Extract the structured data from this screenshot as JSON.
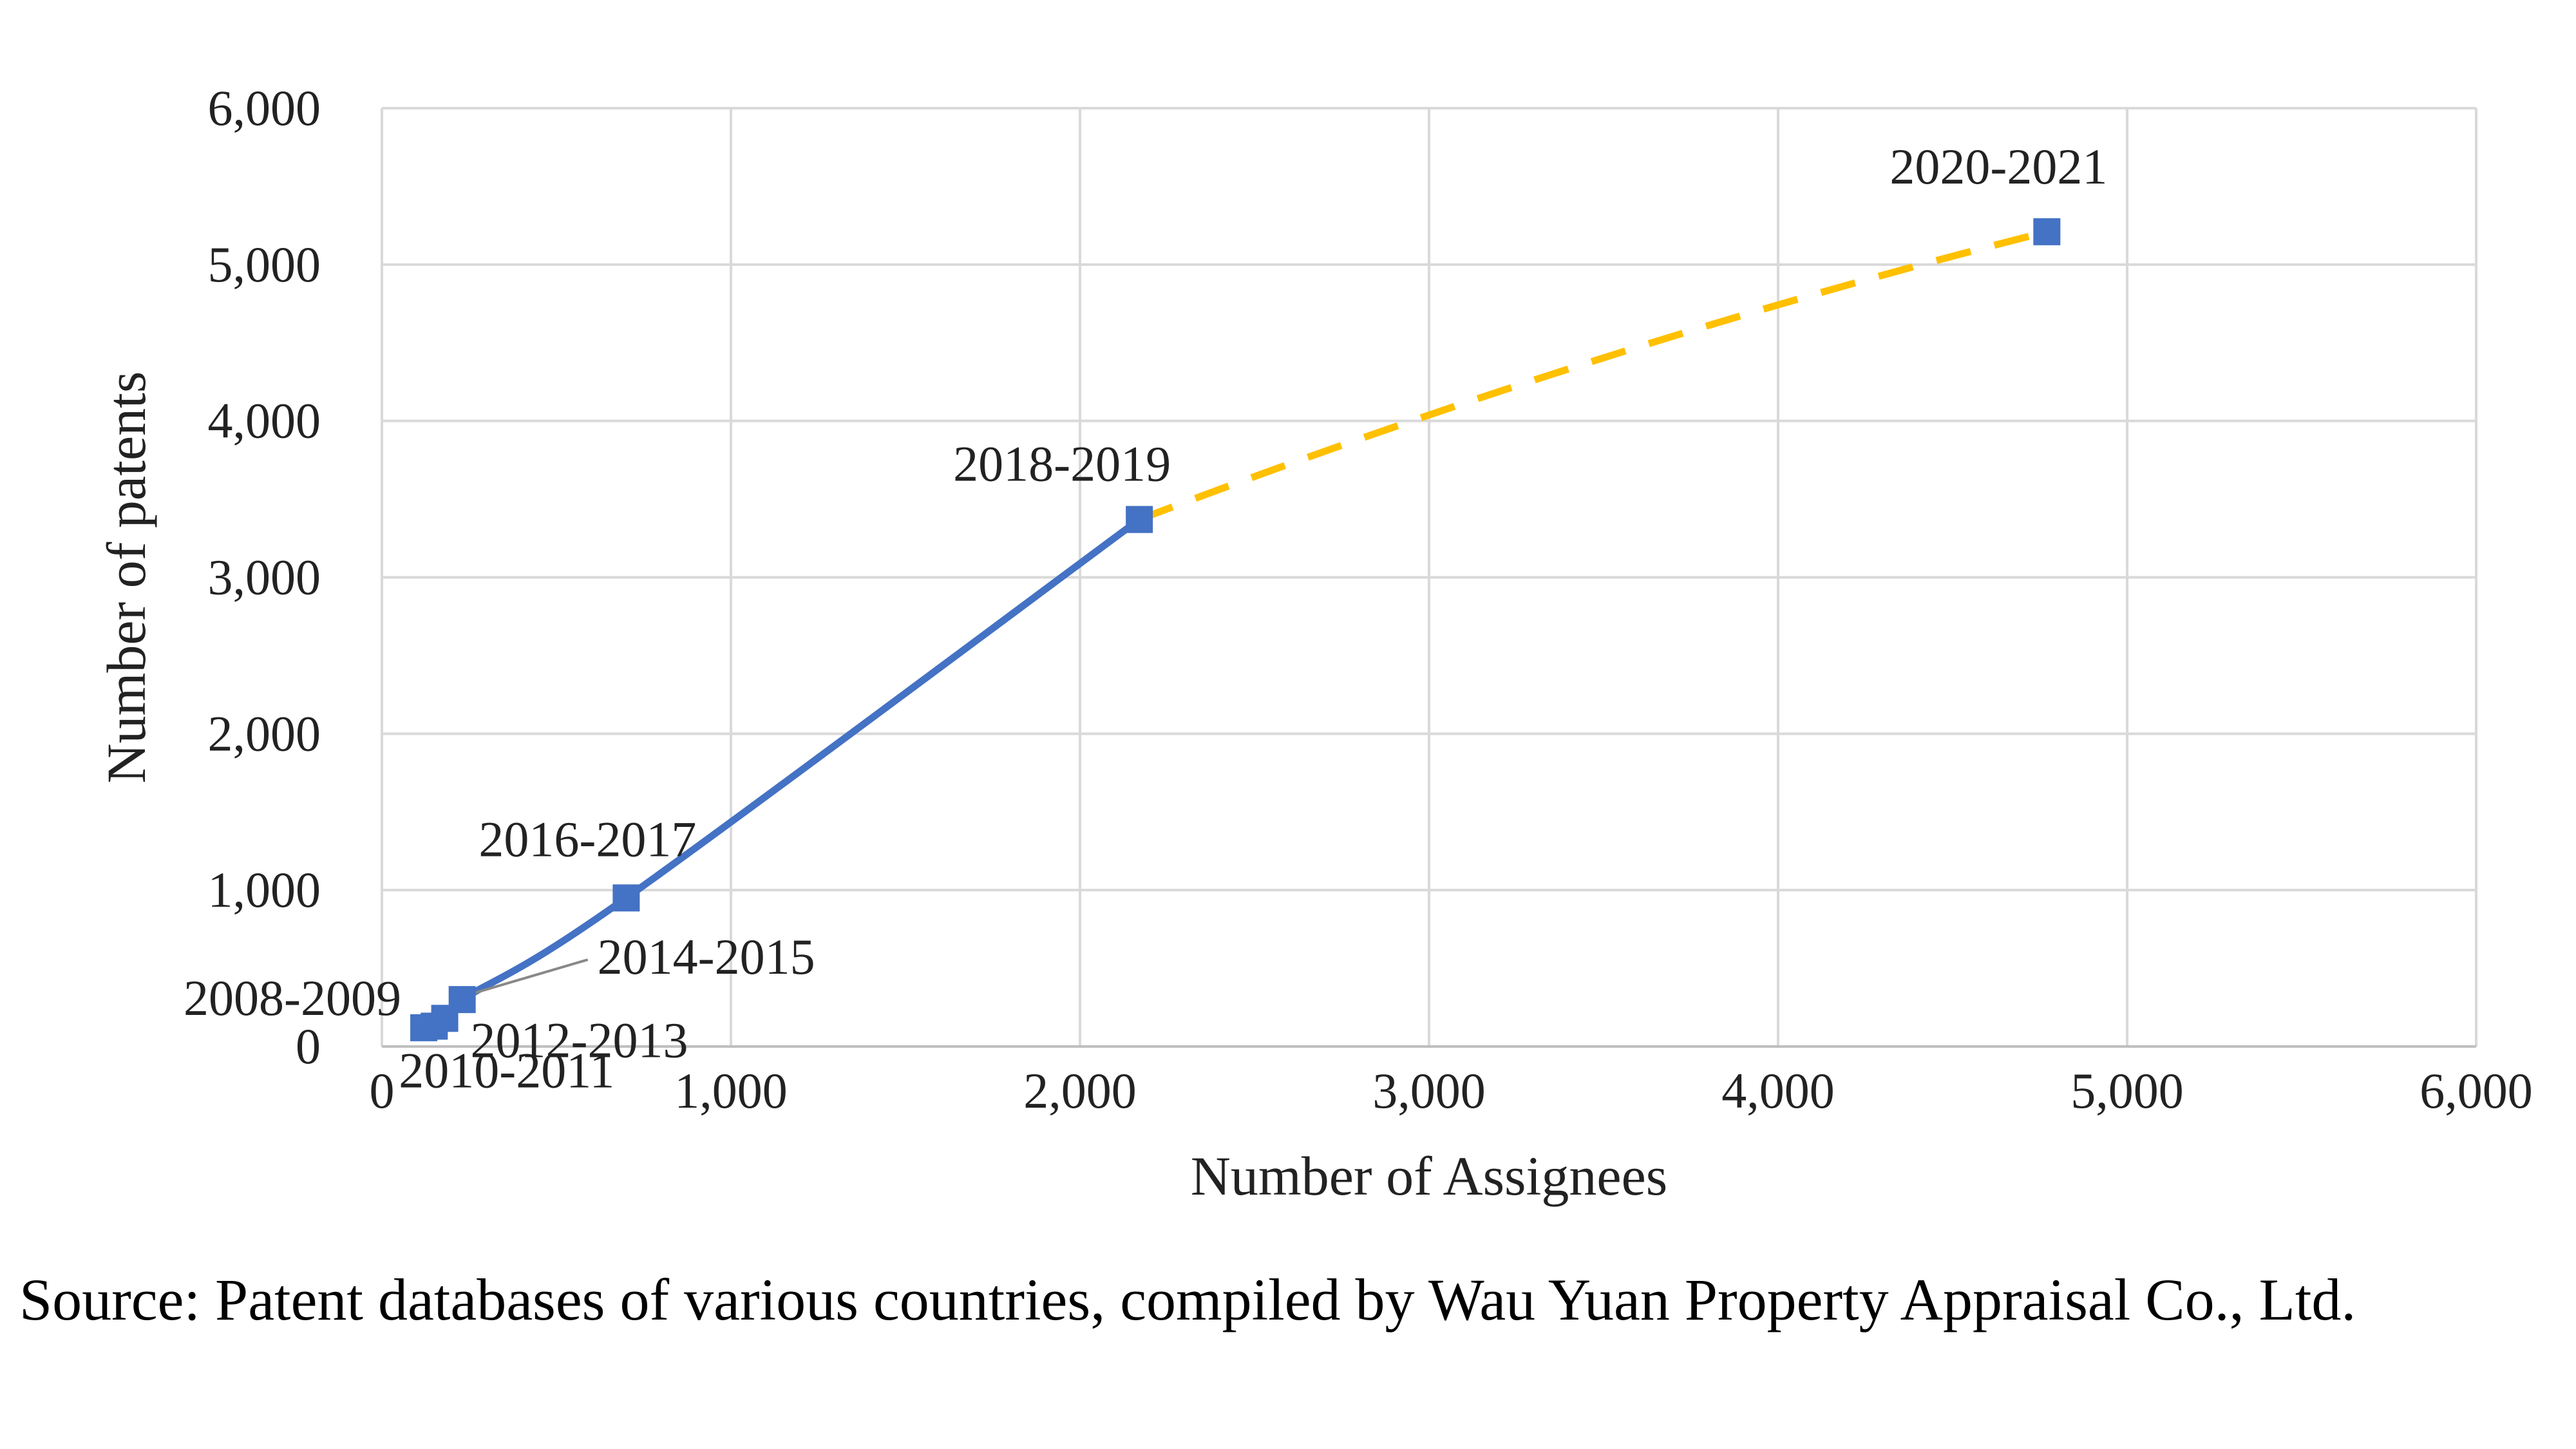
{
  "chart_data": {
    "type": "scatter",
    "title": "",
    "xlabel": "Number of Assignees",
    "ylabel": "Number of patents",
    "xlim": [
      0,
      6000
    ],
    "ylim": [
      0,
      6000
    ],
    "x_ticks": [
      "0",
      "1,000",
      "2,000",
      "3,000",
      "4,000",
      "5,000",
      "6,000"
    ],
    "y_ticks": [
      "0",
      "1,000",
      "2,000",
      "3,000",
      "4,000",
      "5,000",
      "6,000"
    ],
    "grid": true,
    "series": [
      {
        "line_style": "solid",
        "color": "#4472C4",
        "points": [
          {
            "label": "2008-2009",
            "x": 120,
            "y": 120
          },
          {
            "label": "2010-2011",
            "x": 150,
            "y": 130
          },
          {
            "label": "2012-2013",
            "x": 180,
            "y": 180
          },
          {
            "label": "2014-2015",
            "x": 230,
            "y": 300
          },
          {
            "label": "2016-2017",
            "x": 700,
            "y": 950
          },
          {
            "label": "2018-2019",
            "x": 2170,
            "y": 3370
          }
        ]
      },
      {
        "line_style": "dashed",
        "color": "#FFC000",
        "points": [
          {
            "label": "2018-2019",
            "x": 2170,
            "y": 3370
          },
          {
            "label": "2020-2021",
            "x": 4770,
            "y": 5210
          }
        ]
      }
    ]
  },
  "source_note": "Source: Patent databases of various countries, compiled by Wau Yuan Property Appraisal Co., Ltd."
}
